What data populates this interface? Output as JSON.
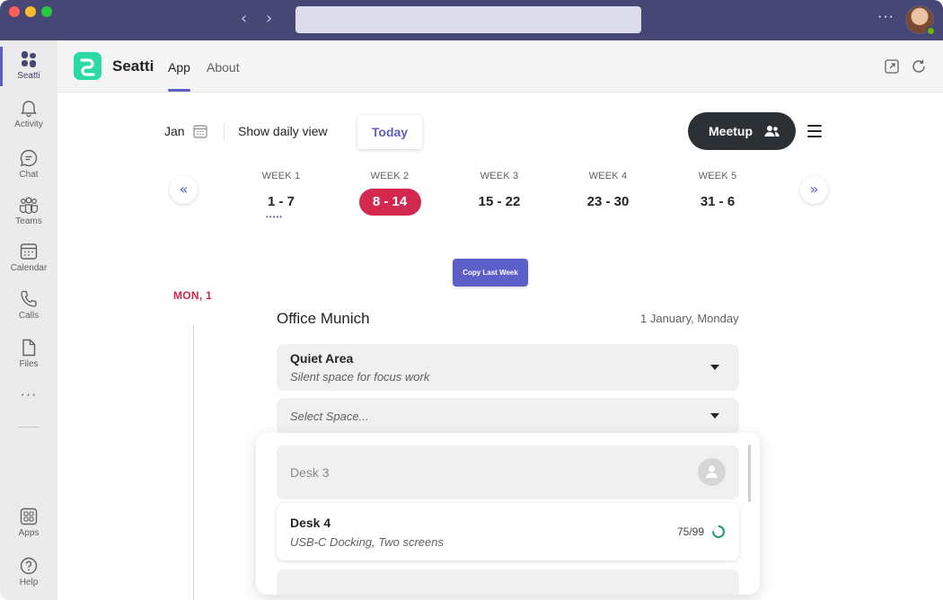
{
  "window": {
    "traffic_colors": [
      "#ff5f57",
      "#febc2e",
      "#28c840"
    ],
    "back_icon": "chevron-left-icon",
    "forward_icon": "chevron-right-icon",
    "more_label": "···"
  },
  "rail": {
    "items": [
      {
        "label": "Seatti",
        "icon": "seatti-icon"
      },
      {
        "label": "Activity",
        "icon": "bell-icon"
      },
      {
        "label": "Chat",
        "icon": "chat-icon"
      },
      {
        "label": "Teams",
        "icon": "teams-icon"
      },
      {
        "label": "Calendar",
        "icon": "calendar-icon"
      },
      {
        "label": "Calls",
        "icon": "phone-icon"
      },
      {
        "label": "Files",
        "icon": "file-icon"
      },
      {
        "label": "Apps",
        "icon": "apps-icon"
      },
      {
        "label": "Help",
        "icon": "help-icon"
      }
    ],
    "more_label": "···"
  },
  "header": {
    "app_name": "Seatti",
    "tabs": [
      {
        "label": "App"
      },
      {
        "label": "About"
      }
    ],
    "active_tab": "App",
    "accent": "#5b5fc7"
  },
  "toolbar": {
    "month": "Jan",
    "daily_view": "Show daily view",
    "today": "Today",
    "meetup": "Meetup"
  },
  "weeks": {
    "prev_label": "«",
    "next_label": "»",
    "items": [
      {
        "label": "WEEK 1",
        "range": "1 - 7"
      },
      {
        "label": "WEEK 2",
        "range": "8 - 14"
      },
      {
        "label": "WEEK 3",
        "range": "15 - 22"
      },
      {
        "label": "WEEK 4",
        "range": "23 - 30"
      },
      {
        "label": "WEEK 5",
        "range": "31 - 6"
      }
    ],
    "active_index": 1,
    "active_color": "#d3294f",
    "indicator_dots": "•••••"
  },
  "copy_last_week": "Copy Last Week",
  "day": {
    "label": "MON, 1",
    "office": "Office Munich",
    "date": "1 January, Monday",
    "area": {
      "name": "Quiet Area",
      "description": "Silent space for focus work"
    },
    "space_placeholder": "Select Space...",
    "desks": [
      {
        "name": "Desk 3",
        "state": "occupied"
      },
      {
        "name": "Desk 4",
        "description": "USB-C Docking, Two screens",
        "capacity": "75/99",
        "capacity_fraction": 0.76
      }
    ]
  }
}
